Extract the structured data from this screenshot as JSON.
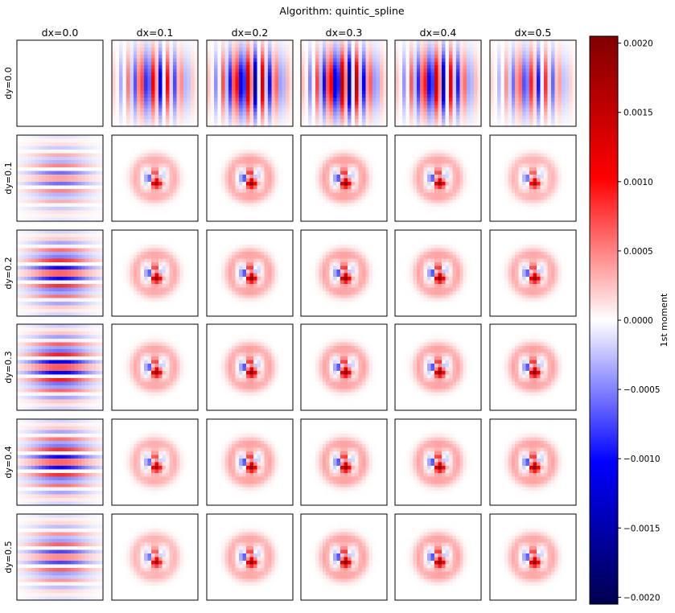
{
  "chart_data": {
    "type": "heatmap",
    "title": "Algorithm: quintic_spline",
    "col_labels": [
      "dx=0.0",
      "dx=0.1",
      "dx=0.2",
      "dx=0.3",
      "dx=0.4",
      "dx=0.5"
    ],
    "row_labels": [
      "dy=0.0",
      "dy=0.1",
      "dy=0.2",
      "dy=0.3",
      "dy=0.4",
      "dy=0.5"
    ],
    "colorbar": {
      "label": "1st moment",
      "colormap": "seismic",
      "vmin": -0.00205,
      "vmax": 0.00205,
      "ticks": [
        "0.0020",
        "0.0015",
        "0.0010",
        "0.0005",
        "0.0000",
        "−0.0005",
        "−0.0010",
        "−0.0015",
        "−0.0020"
      ],
      "tick_values": [
        0.002,
        0.0015,
        0.001,
        0.0005,
        0,
        -0.0005,
        -0.001,
        -0.0015,
        -0.002
      ]
    },
    "grid_size": 24,
    "panel_peak_values": [
      [
        0.0,
        0.0012,
        0.0016,
        0.0017,
        0.0015,
        0.001
      ],
      [
        0.0007,
        0.0014,
        0.0016,
        0.0016,
        0.0015,
        0.0013
      ],
      [
        0.0012,
        0.0015,
        0.0016,
        0.0016,
        0.0016,
        0.0015
      ],
      [
        0.0013,
        0.0015,
        0.0016,
        0.0016,
        0.0016,
        0.0016
      ],
      [
        0.0012,
        0.0014,
        0.0016,
        0.0016,
        0.0016,
        0.0016
      ],
      [
        0.0009,
        0.0013,
        0.0015,
        0.0016,
        0.0016,
        0.0015
      ]
    ]
  }
}
